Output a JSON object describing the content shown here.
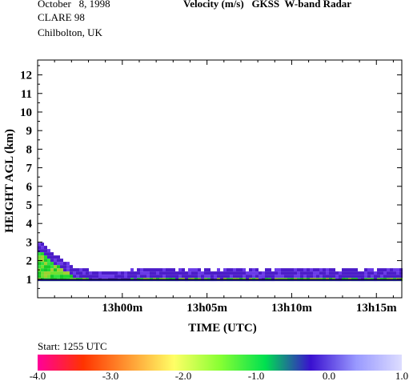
{
  "header": {
    "date": "October   8, 1998",
    "campaign": "CLARE 98",
    "site": "Chilbolton, UK",
    "title": "Velocity (m/s)   GKSS  W-band Radar"
  },
  "footer": {
    "start": "Start: 1255 UTC"
  },
  "colors": {
    "background_band": "#00d500",
    "ground_line": "#000000"
  },
  "colorbar": {
    "tick_labels": [
      "-4.0",
      "-3.0",
      "-2.0",
      "-1.0",
      "0.0",
      "1.0"
    ],
    "stops": [
      "#ff0099",
      "#ff3300",
      "#ff9933",
      "#ffff66",
      "#88ff33",
      "#00e050",
      "#3a10d0",
      "#9999ff",
      "#ddddff"
    ]
  },
  "chart_data": {
    "type": "heatmap",
    "title": "Velocity (m/s)   GKSS  W-band Radar",
    "xlabel": "TIME (UTC)",
    "ylabel": "HEIGHT AGL (km)",
    "x_tick_labels": [
      "13h00m",
      "13h05m",
      "13h10m",
      "13h15m"
    ],
    "x_tick_minutes": [
      5,
      10,
      15,
      20
    ],
    "xlim_minutes_after_1255": [
      0,
      21.5
    ],
    "y_tick_labels": [
      "1",
      "2",
      "3",
      "4",
      "5",
      "6",
      "7",
      "8",
      "9",
      "10",
      "11",
      "12"
    ],
    "ylim_km": [
      0,
      12.8
    ],
    "colorbar_range_ms": [
      -4.0,
      1.0
    ],
    "echo": {
      "base_km": 0.9,
      "top_km": [
        3.0,
        2.2,
        1.6,
        1.4,
        1.3,
        1.35,
        1.45,
        1.5,
        1.5,
        1.4,
        1.4,
        1.45,
        1.45,
        1.45,
        1.45,
        1.5,
        1.5,
        1.45,
        1.45,
        1.45,
        1.45,
        1.45
      ]
    }
  }
}
